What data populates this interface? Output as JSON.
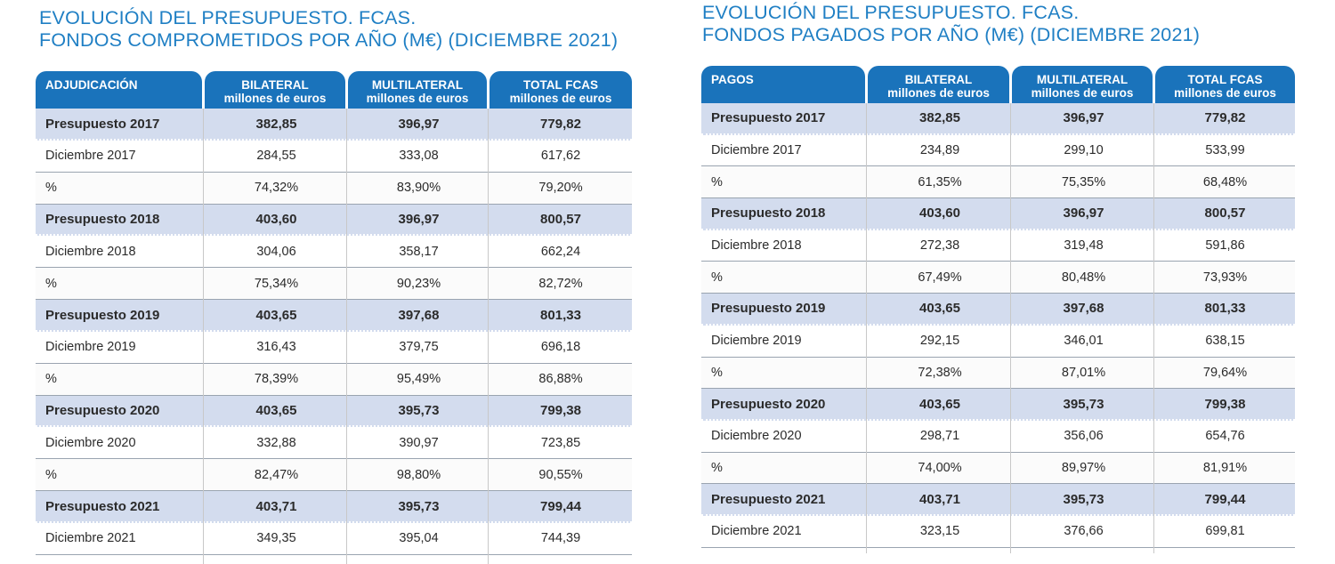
{
  "left": {
    "title_line1": "EVOLUCIÓN DEL PRESUPUESTO. FCAS.",
    "title_line2": "FONDOS COMPROMETIDOS POR AÑO (M€) (DICIEMBRE 2021)",
    "headers": [
      {
        "line1": "ADJUDICACIÓN",
        "line2": ""
      },
      {
        "line1": "BILATERAL",
        "line2": "millones de euros"
      },
      {
        "line1": "MULTILATERAL",
        "line2": "millones de euros"
      },
      {
        "line1": "TOTAL FCAS",
        "line2": "millones de euros"
      }
    ],
    "rows": [
      {
        "type": "budget",
        "cells": [
          "Presupuesto 2017",
          "382,85",
          "396,97",
          "779,82"
        ]
      },
      {
        "type": "plain",
        "cells": [
          "Diciembre 2017",
          "284,55",
          "333,08",
          "617,62"
        ]
      },
      {
        "type": "alt",
        "cells": [
          "%",
          "74,32%",
          "83,90%",
          "79,20%"
        ]
      },
      {
        "type": "budget",
        "cells": [
          "Presupuesto 2018",
          "403,60",
          "396,97",
          "800,57"
        ]
      },
      {
        "type": "plain",
        "cells": [
          "Diciembre 2018",
          "304,06",
          "358,17",
          "662,24"
        ]
      },
      {
        "type": "alt",
        "cells": [
          "%",
          "75,34%",
          "90,23%",
          "82,72%"
        ]
      },
      {
        "type": "budget",
        "cells": [
          "Presupuesto 2019",
          "403,65",
          "397,68",
          "801,33"
        ]
      },
      {
        "type": "plain",
        "cells": [
          "Diciembre 2019",
          "316,43",
          "379,75",
          "696,18"
        ]
      },
      {
        "type": "alt",
        "cells": [
          "%",
          "78,39%",
          "95,49%",
          "86,88%"
        ]
      },
      {
        "type": "budget",
        "cells": [
          "Presupuesto 2020",
          "403,65",
          "395,73",
          "799,38"
        ]
      },
      {
        "type": "plain",
        "cells": [
          "Diciembre 2020",
          "332,88",
          "390,97",
          "723,85"
        ]
      },
      {
        "type": "alt",
        "cells": [
          "%",
          "82,47%",
          "98,80%",
          "90,55%"
        ]
      },
      {
        "type": "budget",
        "cells": [
          "Presupuesto 2021",
          "403,71",
          "395,73",
          "799,44"
        ]
      },
      {
        "type": "plain",
        "cells": [
          "Diciembre 2021",
          "349,35",
          "395,04",
          "744,39"
        ]
      }
    ]
  },
  "right": {
    "title_line1": "EVOLUCIÓN DEL PRESUPUESTO. FCAS.",
    "title_line2": "FONDOS PAGADOS POR AÑO (M€) (DICIEMBRE 2021)",
    "headers": [
      {
        "line1": "PAGOS",
        "line2": ""
      },
      {
        "line1": "BILATERAL",
        "line2": "millones de euros"
      },
      {
        "line1": "MULTILATERAL",
        "line2": "millones de euros"
      },
      {
        "line1": "TOTAL FCAS",
        "line2": "millones de euros"
      }
    ],
    "rows": [
      {
        "type": "budget",
        "cells": [
          "Presupuesto 2017",
          "382,85",
          "396,97",
          "779,82"
        ]
      },
      {
        "type": "plain",
        "cells": [
          "Diciembre 2017",
          "234,89",
          "299,10",
          "533,99"
        ]
      },
      {
        "type": "alt",
        "cells": [
          "%",
          "61,35%",
          "75,35%",
          "68,48%"
        ]
      },
      {
        "type": "budget",
        "cells": [
          "Presupuesto 2018",
          "403,60",
          "396,97",
          "800,57"
        ]
      },
      {
        "type": "plain",
        "cells": [
          "Diciembre 2018",
          "272,38",
          "319,48",
          "591,86"
        ]
      },
      {
        "type": "alt",
        "cells": [
          "%",
          "67,49%",
          "80,48%",
          "73,93%"
        ]
      },
      {
        "type": "budget",
        "cells": [
          "Presupuesto 2019",
          "403,65",
          "397,68",
          "801,33"
        ]
      },
      {
        "type": "plain",
        "cells": [
          "Diciembre 2019",
          "292,15",
          "346,01",
          "638,15"
        ]
      },
      {
        "type": "alt",
        "cells": [
          "%",
          "72,38%",
          "87,01%",
          "79,64%"
        ]
      },
      {
        "type": "budget",
        "cells": [
          "Presupuesto 2020",
          "403,65",
          "395,73",
          "799,38"
        ]
      },
      {
        "type": "plain",
        "cells": [
          "Diciembre 2020",
          "298,71",
          "356,06",
          "654,76"
        ]
      },
      {
        "type": "alt",
        "cells": [
          "%",
          "74,00%",
          "89,97%",
          "81,91%"
        ]
      },
      {
        "type": "budget",
        "cells": [
          "Presupuesto 2021",
          "403,71",
          "395,73",
          "799,44"
        ]
      },
      {
        "type": "plain",
        "cells": [
          "Diciembre 2021",
          "323,15",
          "376,66",
          "699,81"
        ]
      }
    ]
  },
  "colors": {
    "header_blue": "#1a73bb",
    "title_blue": "#1f7fc4",
    "budget_row": "#d3dcee"
  }
}
